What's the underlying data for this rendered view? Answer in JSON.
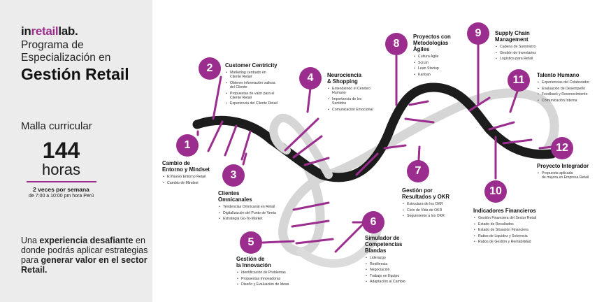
{
  "brand": {
    "pre": "in",
    "accent": "retail",
    "post": "lab."
  },
  "program": {
    "line1": "Programa de",
    "line2": "Especialización en",
    "title": "Gestión Retail"
  },
  "curriculum": {
    "label": "Malla curricular",
    "hours": "144",
    "hours_unit": "horas",
    "schedule_days": "2 veces por semana",
    "schedule_time": "de 7:00 a 10:00 pm hora Perú"
  },
  "tagline": {
    "p1": "Una ",
    "b1": "experiencia desafiante",
    "p2": " en donde podrás aplicar estrategias para ",
    "b2": "generar valor en el sector Retail."
  },
  "colors": {
    "accent": "#9b2d8e",
    "strand_dark": "#1c1c1c",
    "strand_light": "#d4d4d4",
    "panel": "#ececec"
  },
  "modules": [
    {
      "num": "1",
      "title": "Cambio de\nEntorno y Mindset",
      "items": [
        "El Nuevo Entorno Retail",
        "Cambio de Mindset"
      ]
    },
    {
      "num": "2",
      "title": "Customer Centricity",
      "items": [
        "Marketing centrado en\nCliente Retail",
        "Obtener información valiosa\ndel Cliente",
        "Propuestas de valor para el\nCliente Retail",
        "Experiencia del Cliente Retail"
      ]
    },
    {
      "num": "3",
      "title": "Clientes\nOmnicanales",
      "items": [
        "Tendencias Omnicanal en Retail",
        "Digitalización del Punto de Venta",
        "Estrategia Go-To-Market"
      ]
    },
    {
      "num": "4",
      "title": "Neurociencia\n& Shopping",
      "items": [
        "Entendiendo el Cerebro\nHumano",
        "Importancia de los\nSentidos",
        "Comunicación Emocional"
      ]
    },
    {
      "num": "5",
      "title": "Gestión de\nla Innovación",
      "items": [
        "Identificación de Problemas",
        "Propuestas Innovadoras",
        "Diseño y Evaluación de Ideas"
      ]
    },
    {
      "num": "6",
      "title": "Simulador de\nCompetencias\nBlandas",
      "items": [
        "Liderazgo",
        "Resiliencia",
        "Negociación",
        "Trabajo en Equipo",
        "Adaptación al Cambio"
      ]
    },
    {
      "num": "7",
      "title": "Gestión por\nResultados y OKR",
      "items": [
        "Estructura de los OKR",
        "Ciclo de Vida de OKR",
        "Seguimiento a los OKR"
      ]
    },
    {
      "num": "8",
      "title": "Proyectos con\nMetodologías\nÁgiles",
      "items": [
        "Cultura Agile",
        "Scrum",
        "Lean Startup",
        "Kanban"
      ]
    },
    {
      "num": "9",
      "title": "Supply Chain\nManagement",
      "items": [
        "Cadena de Suministro",
        "Gestión de Inventarios",
        "Logística para Retail"
      ]
    },
    {
      "num": "10",
      "title": "Indicadores Financieros",
      "items": [
        "Gestión Financiera del Sector Retail",
        "Estado de Resultados",
        "Estado de Situación Financiera",
        "Ratios de Liquidez y Solvencia",
        "Ratios de Gestión y Rentabilidad"
      ]
    },
    {
      "num": "11",
      "title": "Talento Humano",
      "items": [
        "Experiencias del Colaborador",
        "Evaluación de Desempeño",
        "Feedback y Reconocimiento",
        "Comunicación Interna"
      ]
    },
    {
      "num": "12",
      "title": "Proyecto Integrador",
      "items": [
        "Propuesta aplicada\nde mejora en Empresa Retail"
      ]
    }
  ]
}
